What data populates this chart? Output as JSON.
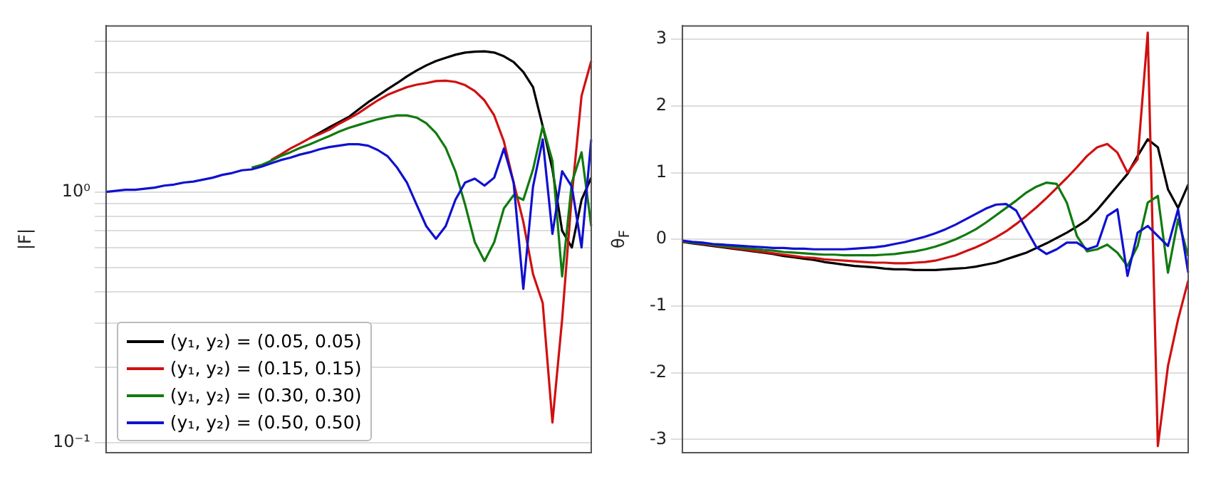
{
  "chart_data": [
    {
      "type": "line",
      "ylabel": "|F|",
      "log": "y",
      "grid": "y",
      "legend": "bottom left",
      "tick_labels": "y",
      "categories": [
        null,
        null,
        null,
        null,
        null,
        null,
        null,
        null,
        null,
        null,
        null,
        null,
        null,
        null,
        null,
        null,
        null,
        null,
        null,
        null,
        null,
        null,
        null,
        null,
        null,
        null,
        null,
        null,
        null,
        null,
        null,
        null,
        null,
        null,
        null,
        null,
        null,
        null,
        null,
        null,
        null,
        null,
        null,
        null,
        null,
        null,
        null,
        null,
        null,
        null,
        null
      ],
      "ylim": [
        0.091,
        4.6
      ],
      "yticks": [
        {
          "value": 0.1,
          "label": "10⁻¹"
        },
        {
          "value": 0.2,
          "label": null
        },
        {
          "value": 0.3,
          "label": null
        },
        {
          "value": 0.4,
          "label": null
        },
        {
          "value": 0.5,
          "label": null
        },
        {
          "value": 0.6,
          "label": null
        },
        {
          "value": 0.7,
          "label": null
        },
        {
          "value": 0.8,
          "label": null
        },
        {
          "value": 0.9,
          "label": null
        },
        {
          "value": 1,
          "label": "10⁰"
        },
        {
          "value": 2,
          "label": null
        },
        {
          "value": 3,
          "label": null
        },
        {
          "value": 4,
          "label": null
        }
      ],
      "series": [
        {
          "name": "(y₁, y₂) = (0.05, 0.05)",
          "color": "#000000",
          "values": [
            null,
            null,
            null,
            null,
            null,
            null,
            null,
            null,
            null,
            null,
            null,
            null,
            null,
            null,
            null,
            null,
            null,
            null,
            null,
            null,
            null,
            1.64,
            1.72,
            1.81,
            1.9,
            1.99,
            2.13,
            2.28,
            2.42,
            2.57,
            2.72,
            2.89,
            3.05,
            3.2,
            3.33,
            3.43,
            3.53,
            3.6,
            3.63,
            3.64,
            3.6,
            3.48,
            3.3,
            3.01,
            2.62,
            1.83,
            1.23,
            0.7,
            0.6,
            0.93,
            1.14
          ]
        },
        {
          "name": "(y₁, y₂) = (0.15, 0.15)",
          "color": "#d01010",
          "values": [
            null,
            null,
            null,
            null,
            null,
            null,
            null,
            null,
            null,
            null,
            null,
            null,
            null,
            null,
            null,
            null,
            null,
            1.34,
            1.41,
            1.49,
            1.56,
            1.64,
            1.7,
            1.77,
            1.87,
            1.96,
            2.06,
            2.19,
            2.32,
            2.44,
            2.53,
            2.62,
            2.68,
            2.72,
            2.77,
            2.78,
            2.75,
            2.67,
            2.53,
            2.32,
            2.02,
            1.59,
            1.09,
            0.76,
            0.47,
            0.36,
            0.12,
            0.31,
            0.97,
            2.42,
            3.33
          ]
        },
        {
          "name": "(y₁, y₂) = (0.30, 0.30)",
          "color": "#107a10",
          "values": [
            null,
            null,
            null,
            null,
            null,
            null,
            null,
            null,
            null,
            null,
            null,
            null,
            null,
            null,
            null,
            1.25,
            1.28,
            1.33,
            1.39,
            1.44,
            1.5,
            1.55,
            1.61,
            1.67,
            1.74,
            1.8,
            1.85,
            1.9,
            1.95,
            1.99,
            2.02,
            2.02,
            1.98,
            1.88,
            1.72,
            1.5,
            1.21,
            0.89,
            0.63,
            0.53,
            0.63,
            0.86,
            0.97,
            0.93,
            1.23,
            1.83,
            1.33,
            0.46,
            1.09,
            1.44,
            0.73
          ]
        },
        {
          "name": "(y₁, y₂) = (0.50, 0.50)",
          "color": "#1010d0",
          "values": [
            1.0,
            1.01,
            1.02,
            1.02,
            1.03,
            1.04,
            1.06,
            1.07,
            1.09,
            1.1,
            1.12,
            1.14,
            1.17,
            1.19,
            1.22,
            1.23,
            1.26,
            1.3,
            1.34,
            1.37,
            1.41,
            1.44,
            1.48,
            1.51,
            1.53,
            1.55,
            1.55,
            1.53,
            1.47,
            1.39,
            1.25,
            1.09,
            0.89,
            0.73,
            0.65,
            0.73,
            0.93,
            1.09,
            1.13,
            1.06,
            1.14,
            1.49,
            1.09,
            0.41,
            1.05,
            1.62,
            0.68,
            1.21,
            1.05,
            0.6,
            1.62
          ]
        }
      ]
    },
    {
      "type": "line",
      "ylabel": "θ$_{F}$",
      "grid": "y",
      "tick_labels": "y",
      "categories": [
        null,
        null,
        null,
        null,
        null,
        null,
        null,
        null,
        null,
        null,
        null,
        null,
        null,
        null,
        null,
        null,
        null,
        null,
        null,
        null,
        null,
        null,
        null,
        null,
        null,
        null,
        null,
        null,
        null,
        null,
        null,
        null,
        null,
        null,
        null,
        null,
        null,
        null,
        null,
        null,
        null,
        null,
        null,
        null,
        null,
        null,
        null,
        null,
        null,
        null,
        null
      ],
      "ylim": [
        -3.2,
        3.2
      ],
      "yticks": [
        -3,
        -2,
        -1,
        0,
        1,
        2,
        3
      ],
      "series": [
        {
          "color": "#000000",
          "values": [
            -0.04,
            -0.06,
            -0.08,
            -0.1,
            -0.12,
            -0.14,
            -0.16,
            -0.18,
            -0.2,
            -0.22,
            -0.25,
            -0.27,
            -0.29,
            -0.31,
            -0.34,
            -0.36,
            -0.38,
            -0.4,
            -0.41,
            -0.42,
            -0.44,
            -0.45,
            -0.45,
            -0.46,
            -0.46,
            -0.46,
            -0.45,
            -0.44,
            -0.43,
            -0.41,
            -0.38,
            -0.35,
            -0.3,
            -0.25,
            -0.2,
            -0.13,
            -0.06,
            0.02,
            0.1,
            0.19,
            0.29,
            0.44,
            0.62,
            0.8,
            0.98,
            1.25,
            1.5,
            1.38,
            0.75,
            0.47,
            0.82
          ]
        },
        {
          "color": "#d01010",
          "values": [
            -0.04,
            -0.05,
            -0.07,
            -0.09,
            -0.11,
            -0.13,
            -0.15,
            -0.17,
            -0.19,
            -0.21,
            -0.23,
            -0.25,
            -0.27,
            -0.28,
            -0.3,
            -0.31,
            -0.32,
            -0.33,
            -0.34,
            -0.35,
            -0.35,
            -0.36,
            -0.36,
            -0.35,
            -0.34,
            -0.32,
            -0.28,
            -0.24,
            -0.18,
            -0.12,
            -0.05,
            0.03,
            0.12,
            0.23,
            0.35,
            0.48,
            0.62,
            0.77,
            0.92,
            1.08,
            1.25,
            1.38,
            1.43,
            1.3,
            1.0,
            1.2,
            3.1,
            -3.1,
            -1.9,
            -1.2,
            -0.62
          ]
        },
        {
          "color": "#107a10",
          "values": [
            -0.03,
            -0.05,
            -0.06,
            -0.08,
            -0.1,
            -0.11,
            -0.13,
            -0.14,
            -0.16,
            -0.17,
            -0.19,
            -0.2,
            -0.21,
            -0.22,
            -0.23,
            -0.23,
            -0.24,
            -0.24,
            -0.24,
            -0.24,
            -0.23,
            -0.22,
            -0.2,
            -0.18,
            -0.15,
            -0.11,
            -0.06,
            0.0,
            0.07,
            0.15,
            0.25,
            0.36,
            0.47,
            0.58,
            0.7,
            0.79,
            0.85,
            0.83,
            0.55,
            0.05,
            -0.18,
            -0.15,
            -0.08,
            -0.2,
            -0.4,
            -0.1,
            0.55,
            0.65,
            -0.5,
            0.3,
            -0.25
          ]
        },
        {
          "color": "#1010d0",
          "values": [
            -0.02,
            -0.04,
            -0.05,
            -0.07,
            -0.08,
            -0.09,
            -0.1,
            -0.11,
            -0.12,
            -0.13,
            -0.13,
            -0.14,
            -0.14,
            -0.15,
            -0.15,
            -0.15,
            -0.15,
            -0.14,
            -0.13,
            -0.12,
            -0.1,
            -0.07,
            -0.04,
            0.0,
            0.04,
            0.09,
            0.15,
            0.22,
            0.3,
            0.38,
            0.46,
            0.52,
            0.53,
            0.43,
            0.15,
            -0.12,
            -0.22,
            -0.15,
            -0.05,
            -0.05,
            -0.15,
            -0.1,
            0.35,
            0.45,
            -0.55,
            0.1,
            0.2,
            0.05,
            -0.1,
            0.45,
            -0.5
          ]
        }
      ]
    }
  ]
}
